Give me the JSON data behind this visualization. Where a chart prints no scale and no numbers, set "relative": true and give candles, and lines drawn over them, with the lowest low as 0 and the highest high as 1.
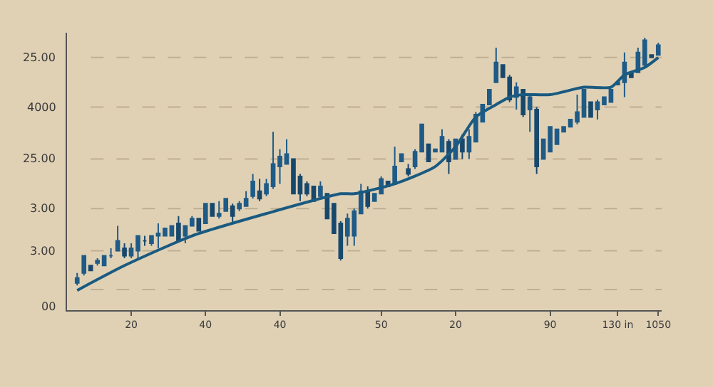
{
  "chart_data": {
    "type": "candlestick",
    "relative": true,
    "categories": [
      null,
      null,
      null,
      null,
      null,
      null,
      null,
      null,
      "20",
      null,
      null,
      null,
      null,
      null,
      null,
      null,
      null,
      null,
      null,
      "40",
      null,
      null,
      null,
      null,
      null,
      null,
      null,
      null,
      null,
      null,
      "40",
      null,
      null,
      null,
      null,
      null,
      null,
      null,
      null,
      null,
      null,
      null,
      null,
      null,
      null,
      "50",
      null,
      null,
      null,
      null,
      null,
      null,
      null,
      null,
      null,
      null,
      "20",
      null,
      null,
      null,
      null,
      null,
      null,
      null,
      null,
      null,
      null,
      null,
      null,
      null,
      "90",
      null,
      null,
      null,
      null,
      null,
      null,
      null,
      null,
      null,
      "130 in",
      null,
      null,
      null,
      null,
      null,
      "1050"
    ],
    "ohlc": [
      [
        0.01,
        0.05,
        0,
        0.03
      ],
      [
        0.05,
        0.12,
        0.04,
        0.12
      ],
      [
        0.08,
        0.08,
        0.06,
        0.06
      ],
      [
        0.09,
        0.11,
        0.08,
        0.1
      ],
      [
        0.08,
        0.12,
        0.08,
        0.12
      ],
      [
        0.12,
        0.15,
        0.11,
        0.12
      ],
      [
        0.14,
        0.24,
        0.14,
        0.18
      ],
      [
        0.15,
        0.17,
        0.11,
        0.12
      ],
      [
        0.12,
        0.17,
        0.11,
        0.15
      ],
      [
        0.14,
        0.2,
        0.11,
        0.2
      ],
      [
        0.18,
        0.2,
        0.16,
        0.18
      ],
      [
        0.17,
        0.2,
        0.16,
        0.2
      ],
      [
        0.2,
        0.25,
        0.15,
        0.21
      ],
      [
        0.2,
        0.23,
        0.2,
        0.23
      ],
      [
        0.2,
        0.24,
        0.2,
        0.24
      ],
      [
        0.25,
        0.28,
        0.18,
        0.18
      ],
      [
        0.2,
        0.24,
        0.17,
        0.24
      ],
      [
        0.24,
        0.28,
        0.24,
        0.27
      ],
      [
        0.27,
        0.27,
        0.22,
        0.22
      ],
      [
        0.25,
        0.33,
        0.25,
        0.33
      ],
      [
        0.33,
        0.33,
        0.28,
        0.28
      ],
      [
        0.28,
        0.34,
        0.27,
        0.29
      ],
      [
        0.3,
        0.35,
        0.3,
        0.35
      ],
      [
        0.32,
        0.33,
        0.25,
        0.28
      ],
      [
        0.31,
        0.34,
        0.3,
        0.33
      ],
      [
        0.32,
        0.38,
        0.32,
        0.35
      ],
      [
        0.36,
        0.45,
        0.35,
        0.42
      ],
      [
        0.38,
        0.43,
        0.34,
        0.35
      ],
      [
        0.37,
        0.43,
        0.36,
        0.41
      ],
      [
        0.4,
        0.62,
        0.39,
        0.49
      ],
      [
        0.48,
        0.55,
        0.41,
        0.52
      ],
      [
        0.49,
        0.59,
        0.49,
        0.53
      ],
      [
        0.51,
        0.51,
        0.37,
        0.37
      ],
      [
        0.44,
        0.45,
        0.34,
        0.37
      ],
      [
        0.41,
        0.42,
        0.36,
        0.37
      ],
      [
        0.4,
        0.4,
        0.34,
        0.34
      ],
      [
        0.36,
        0.42,
        0.35,
        0.4
      ],
      [
        0.37,
        0.37,
        0.27,
        0.27
      ],
      [
        0.33,
        0.33,
        0.21,
        0.21
      ],
      [
        0.25,
        0.26,
        0.1,
        0.11
      ],
      [
        0.2,
        0.29,
        0.16,
        0.27
      ],
      [
        0.2,
        0.31,
        0.16,
        0.3
      ],
      [
        0.29,
        0.41,
        0.29,
        0.38
      ],
      [
        0.38,
        0.4,
        0.31,
        0.32
      ],
      [
        0.34,
        0.37,
        0.34,
        0.37
      ],
      [
        0.37,
        0.44,
        0.37,
        0.43
      ],
      [
        0.42,
        0.42,
        0.4,
        0.4
      ],
      [
        0.41,
        0.56,
        0.41,
        0.48
      ],
      [
        0.5,
        0.53,
        0.5,
        0.53
      ],
      [
        0.47,
        0.49,
        0.44,
        0.45
      ],
      [
        0.48,
        0.55,
        0.47,
        0.54
      ],
      [
        0.54,
        0.65,
        0.54,
        0.65
      ],
      [
        0.57,
        0.57,
        0.5,
        0.5
      ],
      [
        0.54,
        0.55,
        0.54,
        0.55
      ],
      [
        0.54,
        0.63,
        0.54,
        0.6
      ],
      [
        0.58,
        0.59,
        0.45,
        0.5
      ],
      [
        0.51,
        0.59,
        0.51,
        0.59
      ],
      [
        0.59,
        0.61,
        0.51,
        0.54
      ],
      [
        0.54,
        0.63,
        0.51,
        0.6
      ],
      [
        0.58,
        0.7,
        0.58,
        0.69
      ],
      [
        0.66,
        0.73,
        0.66,
        0.73
      ],
      [
        0.73,
        0.79,
        0.73,
        0.79
      ],
      [
        0.82,
        0.96,
        0.82,
        0.9
      ],
      [
        0.89,
        0.89,
        0.84,
        0.84
      ],
      [
        0.84,
        0.85,
        0.74,
        0.75
      ],
      [
        0.76,
        0.82,
        0.71,
        0.8
      ],
      [
        0.79,
        0.79,
        0.68,
        0.69
      ],
      [
        0.71,
        0.77,
        0.62,
        0.76
      ],
      [
        0.71,
        0.72,
        0.45,
        0.48
      ],
      [
        0.51,
        0.59,
        0.51,
        0.59
      ],
      [
        0.54,
        0.64,
        0.54,
        0.64
      ],
      [
        0.57,
        0.63,
        0.57,
        0.63
      ],
      [
        0.62,
        0.64,
        0.62,
        0.64
      ],
      [
        0.64,
        0.67,
        0.64,
        0.67
      ],
      [
        0.66,
        0.77,
        0.65,
        0.7
      ],
      [
        0.68,
        0.79,
        0.68,
        0.79
      ],
      [
        0.74,
        0.74,
        0.68,
        0.68
      ],
      [
        0.71,
        0.75,
        0.67,
        0.74
      ],
      [
        0.73,
        0.76,
        0.73,
        0.76
      ],
      [
        0.74,
        0.79,
        0.74,
        0.79
      ],
      [
        0.81,
        0.82,
        0.81,
        0.82
      ],
      [
        0.82,
        0.94,
        0.76,
        0.9
      ],
      [
        0.86,
        0.86,
        0.84,
        0.84
      ],
      [
        0.86,
        0.96,
        0.86,
        0.94
      ],
      [
        0.89,
        1,
        0.88,
        0.99
      ],
      [
        0.93,
        0.93,
        0.92,
        0.92
      ],
      [
        0.93,
        0.98,
        0.93,
        0.97
      ]
    ],
    "colors": [
      "#1f5b87",
      "#1f5b87",
      "#18486c",
      "#1f5b87",
      "#1f5b87",
      "#1f5b87",
      "#1f5b87",
      "#18486c",
      "#1f5b87",
      "#1f5b87",
      "#18486c",
      "#1f5b87",
      "#1f5b87",
      "#1f5b87",
      "#1f5b87",
      "#18486c",
      "#1f5b87",
      "#1f5b87",
      "#18486c",
      "#1f5b87",
      "#18486c",
      "#1f5b87",
      "#1f5b87",
      "#18486c",
      "#1f5b87",
      "#1f5b87",
      "#1f5b87",
      "#18486c",
      "#1f5b87",
      "#1f5b87",
      "#1f5b87",
      "#1f5b87",
      "#18486c",
      "#18486c",
      "#18486c",
      "#18486c",
      "#1f5b87",
      "#18486c",
      "#18486c",
      "#18486c",
      "#1f5b87",
      "#1f5b87",
      "#1f5b87",
      "#18486c",
      "#1f5b87",
      "#1f5b87",
      "#18486c",
      "#1f5b87",
      "#1f5b87",
      "#18486c",
      "#1f5b87",
      "#1f5b87",
      "#18486c",
      "#1f5b87",
      "#1f5b87",
      "#18486c",
      "#1f5b87",
      "#18486c",
      "#1f5b87",
      "#1f5b87",
      "#1f5b87",
      "#1f5b87",
      "#1f5b87",
      "#18486c",
      "#18486c",
      "#1f5b87",
      "#18486c",
      "#1f5b87",
      "#18486c",
      "#1f5b87",
      "#1f5b87",
      "#1f5b87",
      "#1f5b87",
      "#1f5b87",
      "#1f5b87",
      "#1f5b87",
      "#18486c",
      "#1f5b87",
      "#1f5b87",
      "#1f5b87",
      "#1f5b87",
      "#1f5b87",
      "#18486c",
      "#1f5b87",
      "#1f5b87",
      "#18486c",
      "#1f5b87"
    ],
    "ref_lines": [
      {
        "axis": "y",
        "value": 0.92,
        "color": "#bfae92",
        "line_style": "dashed"
      },
      {
        "axis": "y",
        "value": 0.72,
        "color": "#bfae92",
        "line_style": "dashed"
      },
      {
        "axis": "y",
        "value": 0.51,
        "color": "#bfae92",
        "line_style": "dashed"
      },
      {
        "axis": "y",
        "value": 0.31,
        "color": "#bfae92",
        "line_style": "dashed"
      },
      {
        "axis": "y",
        "value": 0.14,
        "color": "#bfae92",
        "line_style": "dashed"
      },
      {
        "axis": "y",
        "value": -0.017,
        "color": "#bfae92",
        "line_style": "dashed"
      }
    ],
    "series": [
      {
        "type": "line",
        "color": "#1a5a80",
        "line_style": "solid",
        "values": [
          -0.02,
          null,
          null,
          null,
          null,
          null,
          null,
          0.08,
          null,
          null,
          null,
          null,
          null,
          null,
          null,
          null,
          null,
          0.2,
          null,
          null,
          null,
          null,
          null,
          null,
          null,
          null,
          null,
          null,
          0.29,
          null,
          null,
          null,
          null,
          null,
          null,
          null,
          null,
          null,
          null,
          0.37,
          null,
          0.37,
          null,
          null,
          null,
          null,
          null,
          0.41,
          null,
          null,
          null,
          null,
          null,
          0.48,
          null,
          null,
          0.56,
          null,
          null,
          0.68,
          null,
          null,
          0.73,
          null,
          0.76,
          null,
          0.77,
          null,
          null,
          null,
          0.77,
          null,
          null,
          null,
          null,
          0.8,
          null,
          null,
          null,
          0.8,
          null,
          0.85,
          null,
          null,
          0.88,
          null,
          0.92
        ]
      }
    ],
    "annotations": [
      "25.00",
      "4000",
      "25.00",
      "3.00",
      "3.00",
      "00"
    ],
    "legend": false
  }
}
